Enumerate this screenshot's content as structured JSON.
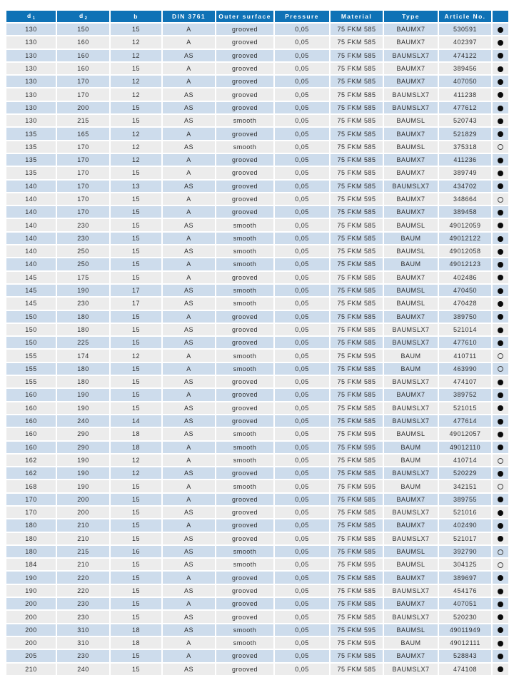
{
  "colors": {
    "header_bg": "#0f72b6",
    "row_alt_blue": "#cddcec",
    "row_alt_gray": "#ececec",
    "cell_text": "#2d2d2d",
    "header_text": "#ffffff",
    "dot_color": "#0a0a0a"
  },
  "table": {
    "columns": [
      {
        "key": "d1",
        "label": "d",
        "sub": "1"
      },
      {
        "key": "d2",
        "label": "d",
        "sub": "2"
      },
      {
        "key": "b",
        "label": "b",
        "sub": ""
      },
      {
        "key": "din",
        "label": "DIN 3761",
        "sub": ""
      },
      {
        "key": "outer_surface",
        "label": "Outer surface",
        "sub": ""
      },
      {
        "key": "pressure",
        "label": "Pressure",
        "sub": ""
      },
      {
        "key": "material",
        "label": "Material",
        "sub": ""
      },
      {
        "key": "type",
        "label": "Type",
        "sub": ""
      },
      {
        "key": "article_no",
        "label": "Article No.",
        "sub": ""
      },
      {
        "key": "availability",
        "label": "",
        "sub": ""
      }
    ],
    "dot_legend": {
      "filled": "filled-circle",
      "open": "open-circle"
    },
    "rows": [
      [
        "130",
        "150",
        "15",
        "A",
        "grooved",
        "0,05",
        "75 FKM 585",
        "BAUMX7",
        "530591",
        "filled"
      ],
      [
        "130",
        "160",
        "12",
        "A",
        "grooved",
        "0,05",
        "75 FKM 585",
        "BAUMX7",
        "402397",
        "filled"
      ],
      [
        "130",
        "160",
        "12",
        "AS",
        "grooved",
        "0,05",
        "75 FKM 585",
        "BAUMSLX7",
        "474122",
        "filled"
      ],
      [
        "130",
        "160",
        "15",
        "A",
        "grooved",
        "0,05",
        "75 FKM 585",
        "BAUMX7",
        "389456",
        "filled"
      ],
      [
        "130",
        "170",
        "12",
        "A",
        "grooved",
        "0,05",
        "75 FKM 585",
        "BAUMX7",
        "407050",
        "filled"
      ],
      [
        "130",
        "170",
        "12",
        "AS",
        "grooved",
        "0,05",
        "75 FKM 585",
        "BAUMSLX7",
        "411238",
        "filled"
      ],
      [
        "130",
        "200",
        "15",
        "AS",
        "grooved",
        "0,05",
        "75 FKM 585",
        "BAUMSLX7",
        "477612",
        "filled"
      ],
      [
        "130",
        "215",
        "15",
        "AS",
        "smooth",
        "0,05",
        "75 FKM 585",
        "BAUMSL",
        "520743",
        "filled"
      ],
      [
        "135",
        "165",
        "12",
        "A",
        "grooved",
        "0,05",
        "75 FKM 585",
        "BAUMX7",
        "521829",
        "filled"
      ],
      [
        "135",
        "170",
        "12",
        "AS",
        "smooth",
        "0,05",
        "75 FKM 585",
        "BAUMSL",
        "375318",
        "open"
      ],
      [
        "135",
        "170",
        "12",
        "A",
        "grooved",
        "0,05",
        "75 FKM 585",
        "BAUMX7",
        "411236",
        "filled"
      ],
      [
        "135",
        "170",
        "15",
        "A",
        "grooved",
        "0,05",
        "75 FKM 585",
        "BAUMX7",
        "389749",
        "filled"
      ],
      [
        "140",
        "170",
        "13",
        "AS",
        "grooved",
        "0,05",
        "75 FKM 585",
        "BAUMSLX7",
        "434702",
        "filled"
      ],
      [
        "140",
        "170",
        "15",
        "A",
        "grooved",
        "0,05",
        "75 FKM 595",
        "BAUMX7",
        "348664",
        "open"
      ],
      [
        "140",
        "170",
        "15",
        "A",
        "grooved",
        "0,05",
        "75 FKM 585",
        "BAUMX7",
        "389458",
        "filled"
      ],
      [
        "140",
        "230",
        "15",
        "AS",
        "smooth",
        "0,05",
        "75 FKM 585",
        "BAUMSL",
        "49012059",
        "filled"
      ],
      [
        "140",
        "230",
        "15",
        "A",
        "smooth",
        "0,05",
        "75 FKM 585",
        "BAUM",
        "49012122",
        "filled"
      ],
      [
        "140",
        "250",
        "15",
        "AS",
        "smooth",
        "0,05",
        "75 FKM 585",
        "BAUMSL",
        "49012058",
        "filled"
      ],
      [
        "140",
        "250",
        "15",
        "A",
        "smooth",
        "0,05",
        "75 FKM 585",
        "BAUM",
        "49012123",
        "filled"
      ],
      [
        "145",
        "175",
        "15",
        "A",
        "grooved",
        "0,05",
        "75 FKM 585",
        "BAUMX7",
        "402486",
        "filled"
      ],
      [
        "145",
        "190",
        "17",
        "AS",
        "smooth",
        "0,05",
        "75 FKM 585",
        "BAUMSL",
        "470450",
        "filled"
      ],
      [
        "145",
        "230",
        "17",
        "AS",
        "smooth",
        "0,05",
        "75 FKM 585",
        "BAUMSL",
        "470428",
        "filled"
      ],
      [
        "150",
        "180",
        "15",
        "A",
        "grooved",
        "0,05",
        "75 FKM 585",
        "BAUMX7",
        "389750",
        "filled"
      ],
      [
        "150",
        "180",
        "15",
        "AS",
        "grooved",
        "0,05",
        "75 FKM 585",
        "BAUMSLX7",
        "521014",
        "filled"
      ],
      [
        "150",
        "225",
        "15",
        "AS",
        "grooved",
        "0,05",
        "75 FKM 585",
        "BAUMSLX7",
        "477610",
        "filled"
      ],
      [
        "155",
        "174",
        "12",
        "A",
        "smooth",
        "0,05",
        "75 FKM 595",
        "BAUM",
        "410711",
        "open"
      ],
      [
        "155",
        "180",
        "15",
        "A",
        "smooth",
        "0,05",
        "75 FKM 585",
        "BAUM",
        "463990",
        "open"
      ],
      [
        "155",
        "180",
        "15",
        "AS",
        "grooved",
        "0,05",
        "75 FKM 585",
        "BAUMSLX7",
        "474107",
        "filled"
      ],
      [
        "160",
        "190",
        "15",
        "A",
        "grooved",
        "0,05",
        "75 FKM 585",
        "BAUMX7",
        "389752",
        "filled"
      ],
      [
        "160",
        "190",
        "15",
        "AS",
        "grooved",
        "0,05",
        "75 FKM 585",
        "BAUMSLX7",
        "521015",
        "filled"
      ],
      [
        "160",
        "240",
        "14",
        "AS",
        "grooved",
        "0,05",
        "75 FKM 585",
        "BAUMSLX7",
        "477614",
        "filled"
      ],
      [
        "160",
        "290",
        "18",
        "AS",
        "smooth",
        "0,05",
        "75 FKM 595",
        "BAUMSL",
        "49012057",
        "filled"
      ],
      [
        "160",
        "290",
        "18",
        "A",
        "smooth",
        "0,05",
        "75 FKM 595",
        "BAUM",
        "49012110",
        "filled"
      ],
      [
        "162",
        "190",
        "12",
        "A",
        "smooth",
        "0,05",
        "75 FKM 585",
        "BAUM",
        "410714",
        "open"
      ],
      [
        "162",
        "190",
        "12",
        "AS",
        "grooved",
        "0,05",
        "75 FKM 585",
        "BAUMSLX7",
        "520229",
        "filled"
      ],
      [
        "168",
        "190",
        "15",
        "A",
        "smooth",
        "0,05",
        "75 FKM 595",
        "BAUM",
        "342151",
        "open"
      ],
      [
        "170",
        "200",
        "15",
        "A",
        "grooved",
        "0,05",
        "75 FKM 585",
        "BAUMX7",
        "389755",
        "filled"
      ],
      [
        "170",
        "200",
        "15",
        "AS",
        "grooved",
        "0,05",
        "75 FKM 585",
        "BAUMSLX7",
        "521016",
        "filled"
      ],
      [
        "180",
        "210",
        "15",
        "A",
        "grooved",
        "0,05",
        "75 FKM 585",
        "BAUMX7",
        "402490",
        "filled"
      ],
      [
        "180",
        "210",
        "15",
        "AS",
        "grooved",
        "0,05",
        "75 FKM 585",
        "BAUMSLX7",
        "521017",
        "filled"
      ],
      [
        "180",
        "215",
        "16",
        "AS",
        "smooth",
        "0,05",
        "75 FKM 585",
        "BAUMSL",
        "392790",
        "open"
      ],
      [
        "184",
        "210",
        "15",
        "AS",
        "smooth",
        "0,05",
        "75 FKM 595",
        "BAUMSL",
        "304125",
        "open"
      ],
      [
        "190",
        "220",
        "15",
        "A",
        "grooved",
        "0,05",
        "75 FKM 585",
        "BAUMX7",
        "389697",
        "filled"
      ],
      [
        "190",
        "220",
        "15",
        "AS",
        "grooved",
        "0,05",
        "75 FKM 585",
        "BAUMSLX7",
        "454176",
        "filled"
      ],
      [
        "200",
        "230",
        "15",
        "A",
        "grooved",
        "0,05",
        "75 FKM 585",
        "BAUMX7",
        "407051",
        "filled"
      ],
      [
        "200",
        "230",
        "15",
        "AS",
        "grooved",
        "0,05",
        "75 FKM 585",
        "BAUMSLX7",
        "520230",
        "filled"
      ],
      [
        "200",
        "310",
        "18",
        "AS",
        "smooth",
        "0,05",
        "75 FKM 595",
        "BAUMSL",
        "49011949",
        "filled"
      ],
      [
        "200",
        "310",
        "18",
        "A",
        "smooth",
        "0,05",
        "75 FKM 595",
        "BAUM",
        "49012111",
        "filled"
      ],
      [
        "205",
        "230",
        "15",
        "A",
        "grooved",
        "0,05",
        "75 FKM 585",
        "BAUMX7",
        "528843",
        "filled"
      ],
      [
        "210",
        "240",
        "15",
        "AS",
        "grooved",
        "0,05",
        "75 FKM 585",
        "BAUMSLX7",
        "474108",
        "filled"
      ]
    ]
  }
}
